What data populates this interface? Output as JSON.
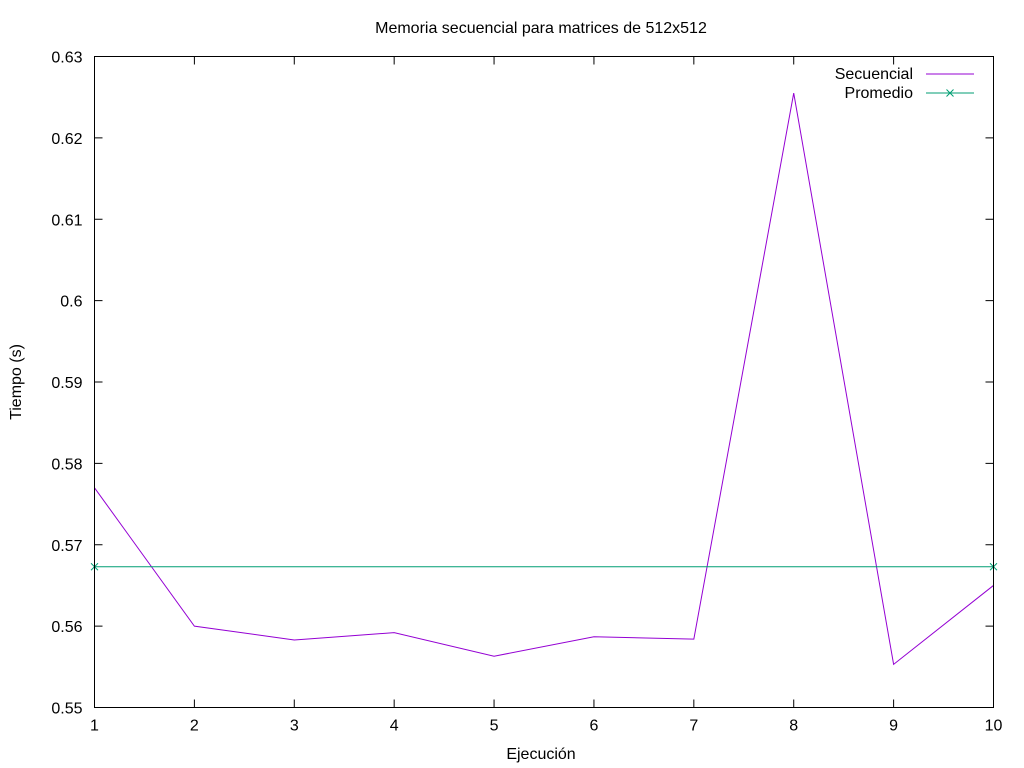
{
  "chart_data": {
    "type": "line",
    "title": "Memoria secuencial para matrices de 512x512",
    "xlabel": "Ejecución",
    "ylabel": "Tiempo (s)",
    "xlim": [
      1,
      10
    ],
    "ylim": [
      0.55,
      0.63
    ],
    "x_ticks": [
      1,
      2,
      3,
      4,
      5,
      6,
      7,
      8,
      9,
      10
    ],
    "y_ticks": [
      0.55,
      0.56,
      0.57,
      0.58,
      0.59,
      0.6,
      0.61,
      0.62,
      0.63
    ],
    "x_tick_labels": [
      "1",
      "2",
      "3",
      "4",
      "5",
      "6",
      "7",
      "8",
      "9",
      "10"
    ],
    "y_tick_labels": [
      "0.55",
      "0.56",
      "0.57",
      "0.58",
      "0.59",
      "0.6",
      "0.61",
      "0.62",
      "0.63"
    ],
    "grid": false,
    "legend_position": "top-right",
    "series": [
      {
        "name": "Secuencial",
        "color": "#9400d3",
        "marker": "none",
        "x": [
          1,
          2,
          3,
          4,
          5,
          6,
          7,
          8,
          9,
          10
        ],
        "y": [
          0.577,
          0.56,
          0.5583,
          0.5592,
          0.5563,
          0.5587,
          0.5584,
          0.6255,
          0.5553,
          0.565
        ]
      },
      {
        "name": "Promedio",
        "color": "#009e73",
        "marker": "x",
        "x": [
          1,
          10
        ],
        "y": [
          0.5673,
          0.5673
        ]
      }
    ]
  }
}
